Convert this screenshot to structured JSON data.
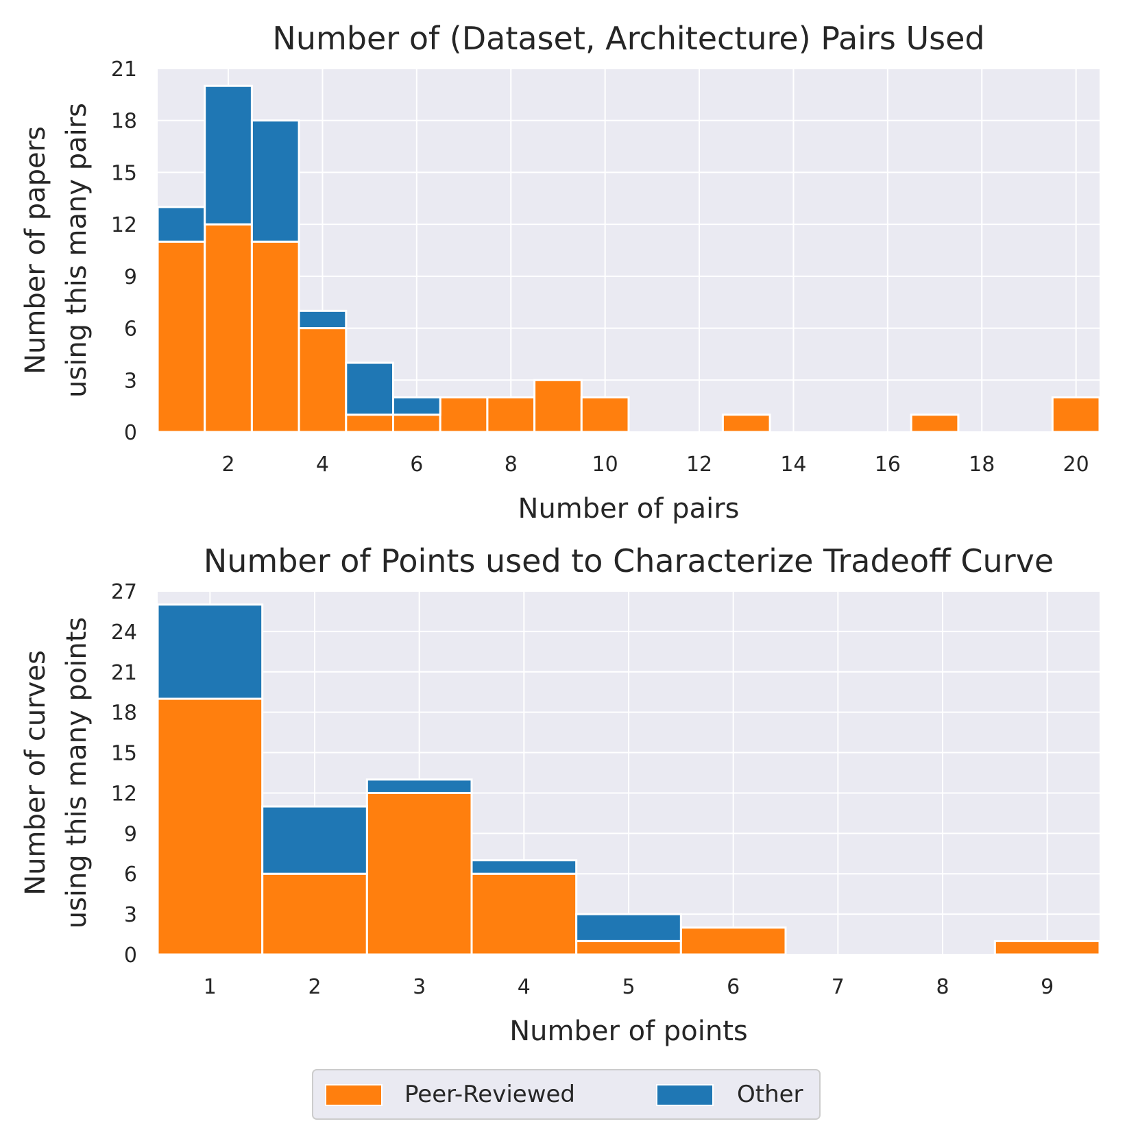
{
  "colors": {
    "peer_reviewed": "#ff7f0e",
    "other": "#1f77b4",
    "plot_bg": "#eaeaf2",
    "grid": "#ffffff",
    "text": "#262626"
  },
  "chart_data": [
    {
      "type": "bar",
      "stacked": true,
      "title": "Number of (Dataset, Architecture) Pairs Used",
      "xlabel": "Number of pairs",
      "ylabel_line1": "Number of papers",
      "ylabel_line2": "using this many pairs",
      "xlim": [
        0.5,
        20.5
      ],
      "ylim": [
        0,
        21
      ],
      "xticks": [
        2,
        4,
        6,
        8,
        10,
        12,
        14,
        16,
        18,
        20
      ],
      "yticks": [
        0,
        3,
        6,
        9,
        12,
        15,
        18,
        21
      ],
      "x": [
        1,
        2,
        3,
        4,
        5,
        6,
        7,
        8,
        9,
        10,
        11,
        12,
        13,
        14,
        15,
        16,
        17,
        18,
        19,
        20
      ],
      "series": [
        {
          "name": "Peer-Reviewed",
          "values": [
            11,
            12,
            11,
            6,
            1,
            1,
            2,
            2,
            3,
            2,
            0,
            0,
            1,
            0,
            0,
            0,
            1,
            0,
            0,
            2
          ]
        },
        {
          "name": "Other",
          "values": [
            2,
            8,
            7,
            1,
            3,
            1,
            0,
            0,
            0,
            0,
            0,
            0,
            0,
            0,
            0,
            0,
            0,
            0,
            0,
            0
          ]
        }
      ]
    },
    {
      "type": "bar",
      "stacked": true,
      "title": "Number of Points used to Characterize Tradeoff Curve",
      "xlabel": "Number of points",
      "ylabel_line1": "Number of curves",
      "ylabel_line2": "using this many points",
      "xlim": [
        0.5,
        9.5
      ],
      "ylim": [
        0,
        27
      ],
      "xticks": [
        1,
        2,
        3,
        4,
        5,
        6,
        7,
        8,
        9
      ],
      "yticks": [
        0,
        3,
        6,
        9,
        12,
        15,
        18,
        21,
        24,
        27
      ],
      "x": [
        1,
        2,
        3,
        4,
        5,
        6,
        7,
        8,
        9
      ],
      "series": [
        {
          "name": "Peer-Reviewed",
          "values": [
            19,
            6,
            12,
            6,
            1,
            2,
            0,
            0,
            1
          ]
        },
        {
          "name": "Other",
          "values": [
            7,
            5,
            1,
            1,
            2,
            0,
            0,
            0,
            0
          ]
        }
      ]
    }
  ],
  "legend": {
    "items": [
      {
        "label": "Peer-Reviewed"
      },
      {
        "label": "Other"
      }
    ]
  }
}
